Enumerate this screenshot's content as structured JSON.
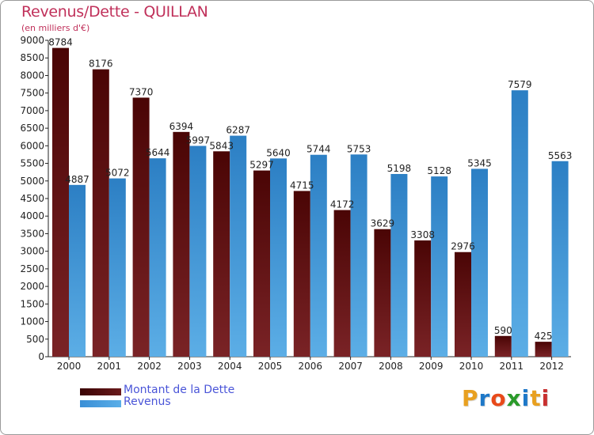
{
  "header": {
    "title": "Revenus/Dette - QUILLAN",
    "unit": "(en milliers d'€)"
  },
  "colors": {
    "title": "#c0305a",
    "dette_top": "#4a0505",
    "dette_bottom": "#7a2326",
    "revenus_top": "#2c7fc4",
    "revenus_bottom": "#5caee6",
    "axis": "#222222"
  },
  "chart_data": {
    "type": "bar",
    "title": "Revenus/Dette - QUILLAN",
    "ylabel": "(en milliers d'€)",
    "xlabel": "",
    "categories": [
      "2000",
      "2001",
      "2002",
      "2003",
      "2004",
      "2005",
      "2006",
      "2007",
      "2008",
      "2009",
      "2010",
      "2011",
      "2012"
    ],
    "series": [
      {
        "name": "Montant de la Dette",
        "values": [
          8784,
          8176,
          7370,
          6394,
          5843,
          5297,
          4715,
          4172,
          3629,
          3308,
          2976,
          590,
          425
        ],
        "labels": [
          "8784",
          "8176",
          "7370",
          "6394",
          "5843",
          "5297",
          "4715",
          "4172",
          "3629",
          "3308",
          "2976",
          "590",
          "425"
        ]
      },
      {
        "name": "Revenus",
        "values": [
          4887,
          5072,
          5644,
          5997,
          6287,
          5640,
          5744,
          5753,
          5198,
          5128,
          5345,
          7579,
          5563
        ],
        "labels": [
          "4887",
          "5072",
          "5644",
          "5997",
          "6287",
          "5640",
          "5744",
          "5753",
          "5198",
          "5128",
          "5345",
          "7579",
          "5563"
        ]
      }
    ],
    "ylim": [
      0,
      9000
    ],
    "yticks": [
      "0",
      "500",
      "1000",
      "1500",
      "2000",
      "2500",
      "3000",
      "3500",
      "4000",
      "4500",
      "5000",
      "5500",
      "6000",
      "6500",
      "7000",
      "7500",
      "8000",
      "8500",
      "9000"
    ],
    "grid": false,
    "legend_position": "bottom-left"
  },
  "legend": {
    "items": [
      "Montant de la Dette",
      "Revenus"
    ]
  },
  "logo": {
    "text": "Proxiti",
    "letters": [
      "P",
      "r",
      "o",
      "x",
      "i",
      "t",
      "i"
    ],
    "letter_colors": [
      "#e8a020",
      "#1e78c8",
      "#e84a1a",
      "#2a9a2a",
      "#1e78c8",
      "#e8a020",
      "#c83030"
    ]
  }
}
